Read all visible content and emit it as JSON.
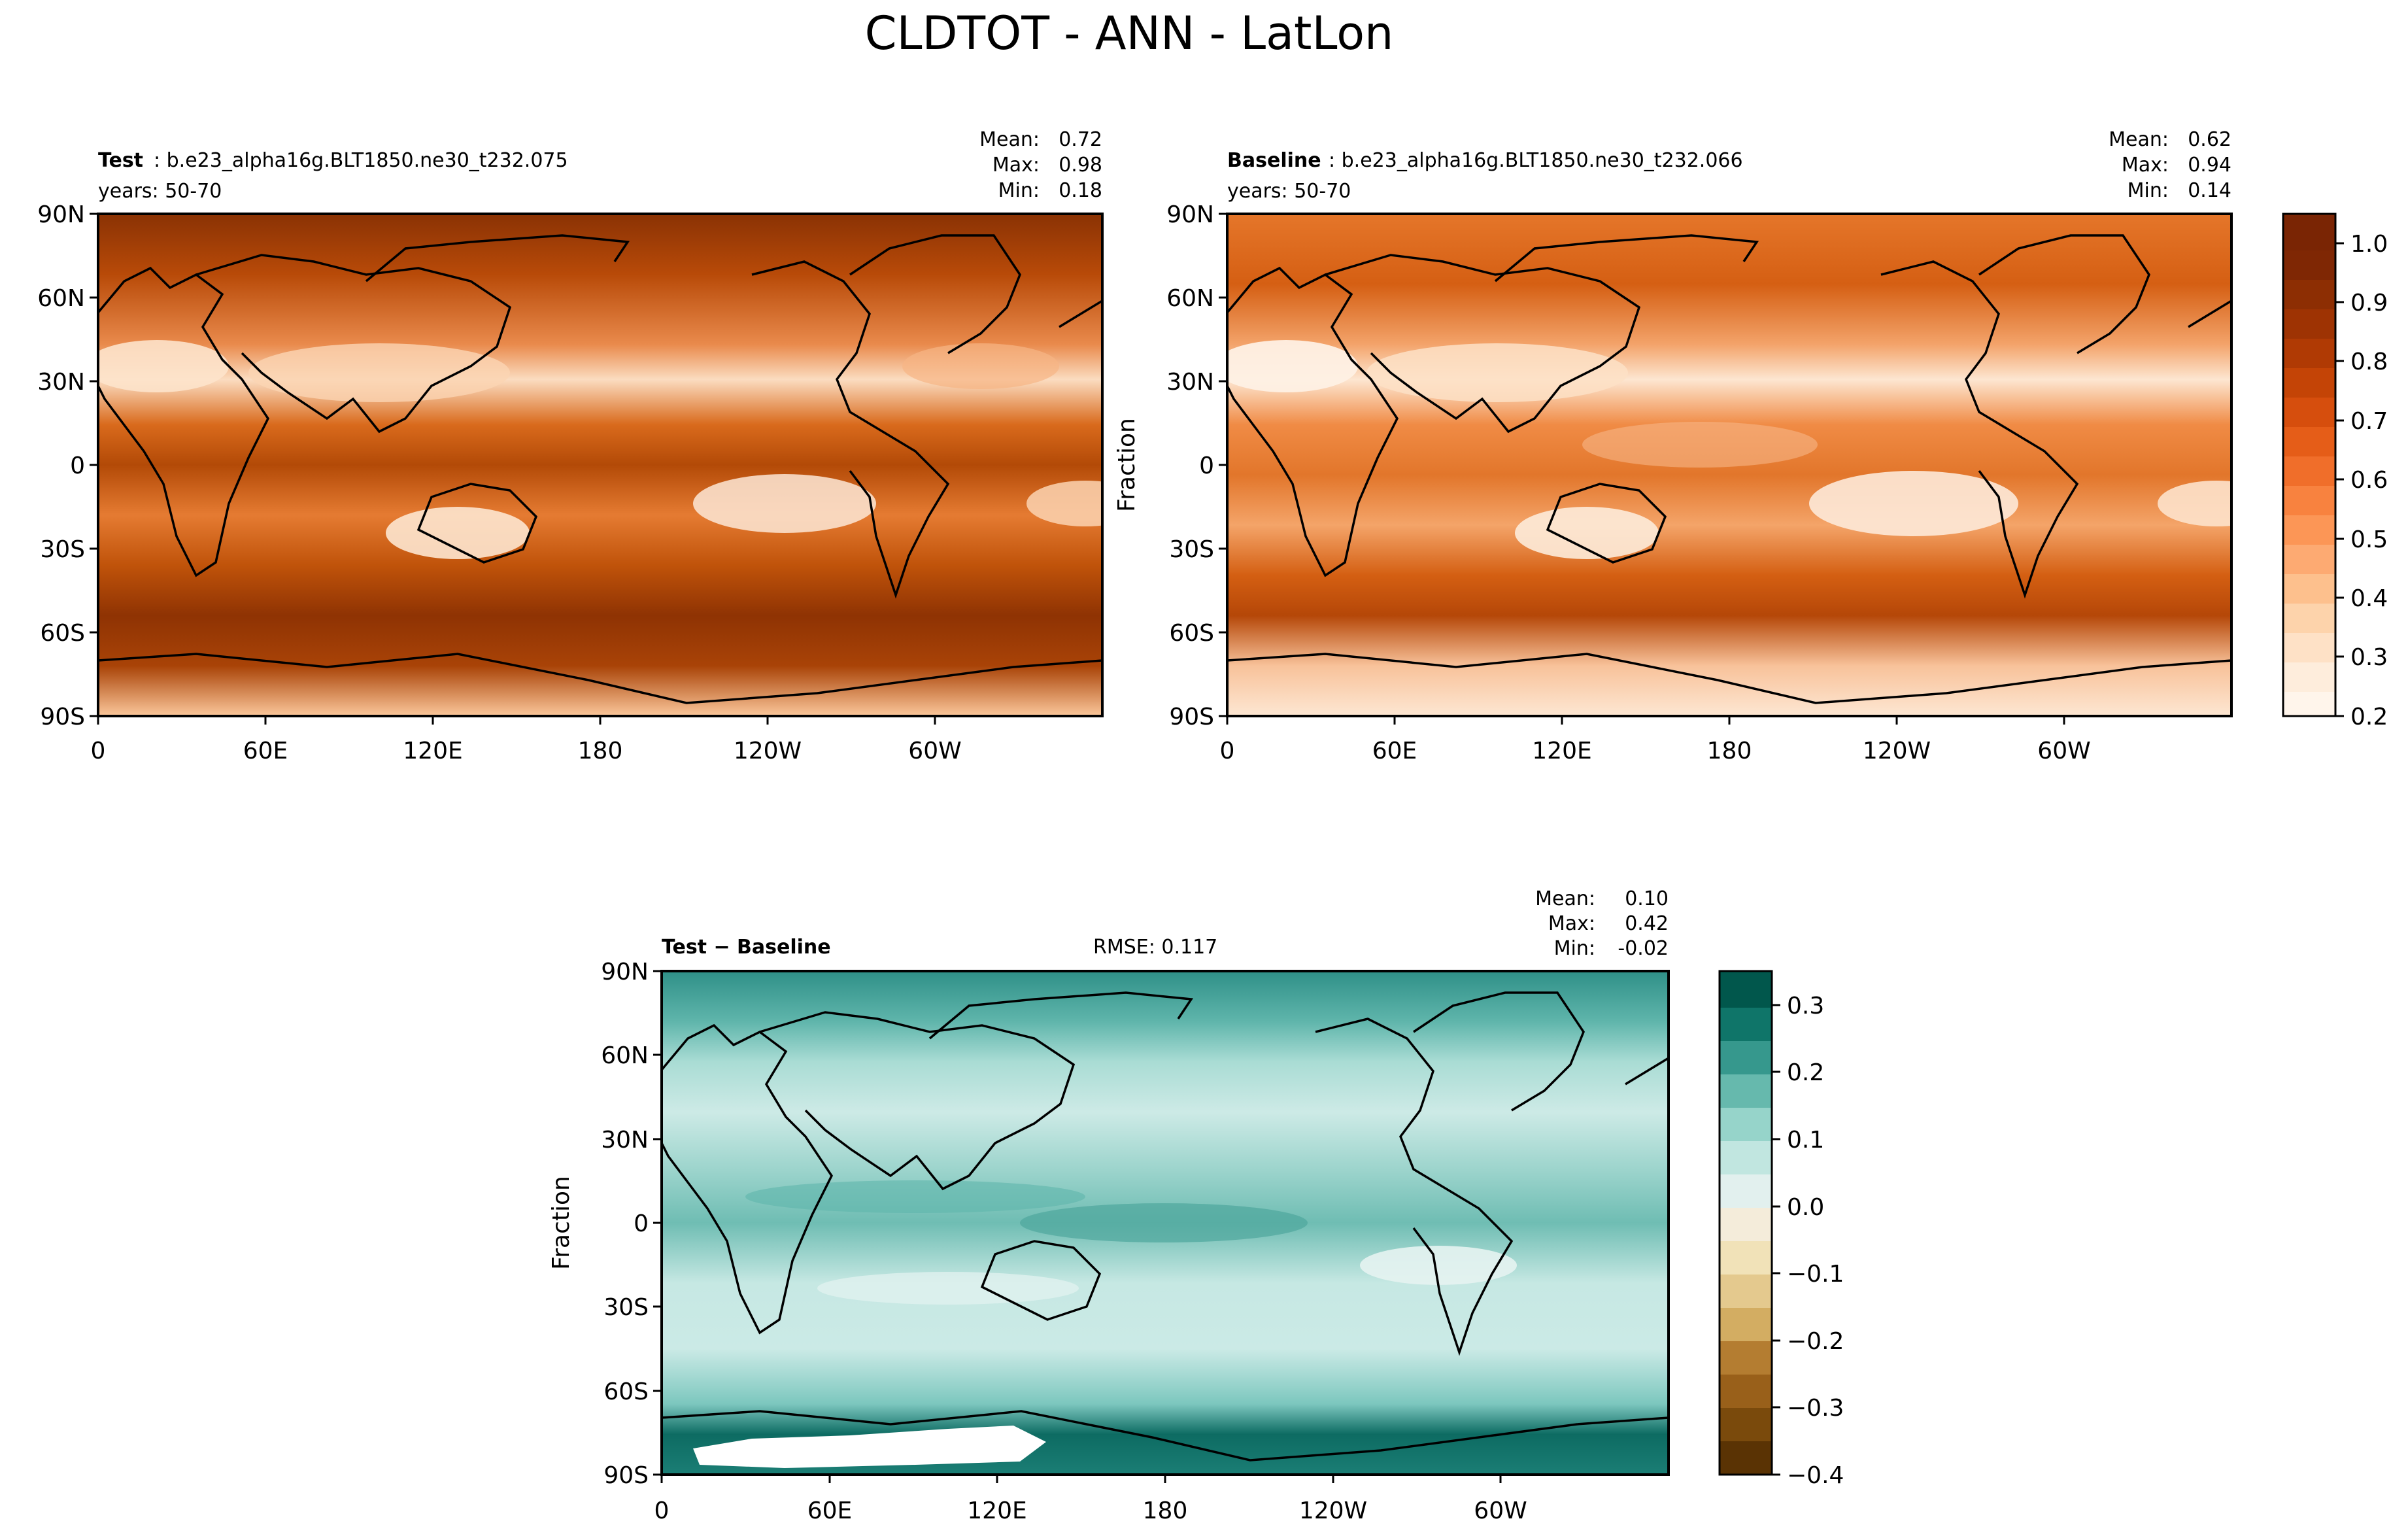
{
  "figure": {
    "suptitle": "CLDTOT - ANN - LatLon"
  },
  "chart_data": [
    {
      "type": "heatmap",
      "panel": "test",
      "title_bold": "Test",
      "title_text": ": b.e23_alpha16g.BLT1850.ne30_t232.075",
      "years": "years: 50-70",
      "stats": {
        "mean_label": "Mean:",
        "mean": "0.72",
        "max_label": "Max:",
        "max": "0.98",
        "min_label": "Min:",
        "min": "0.18"
      },
      "xticks": [
        "0",
        "60E",
        "120E",
        "180",
        "120W",
        "60W"
      ],
      "yticks": [
        "90N",
        "60N",
        "30N",
        "0",
        "30S",
        "60S",
        "90S"
      ],
      "xlim": [
        0,
        360
      ],
      "ylim": [
        -90,
        90
      ],
      "ylabel": ""
    },
    {
      "type": "heatmap",
      "panel": "baseline",
      "title_bold": "Baseline",
      "title_text": ": b.e23_alpha16g.BLT1850.ne30_t232.066",
      "years": "years: 50-70",
      "stats": {
        "mean_label": "Mean:",
        "mean": "0.62",
        "max_label": "Max:",
        "max": "0.94",
        "min_label": "Min:",
        "min": "0.14"
      },
      "xticks": [
        "0",
        "60E",
        "120E",
        "180",
        "120W",
        "60W"
      ],
      "yticks": [
        "90N",
        "60N",
        "30N",
        "0",
        "30S",
        "60S",
        "90S"
      ],
      "xlim": [
        0,
        360
      ],
      "ylim": [
        -90,
        90
      ],
      "ylabel": "Fraction",
      "colorbar": {
        "ticks": [
          "1.0",
          "0.9",
          "0.8",
          "0.7",
          "0.6",
          "0.5",
          "0.4",
          "0.3",
          "0.2"
        ],
        "range": [
          0.2,
          1.05
        ],
        "colormap": "Oranges"
      }
    },
    {
      "type": "heatmap",
      "panel": "difference",
      "title_bold": "Test − Baseline",
      "rmse": "RMSE: 0.117",
      "stats": {
        "mean_label": "Mean:",
        "mean": "0.10",
        "max_label": "Max:",
        "max": "0.42",
        "min_label": "Min:",
        "min": "-0.02"
      },
      "xticks": [
        "0",
        "60E",
        "120E",
        "180",
        "120W",
        "60W"
      ],
      "yticks": [
        "90N",
        "60N",
        "30N",
        "0",
        "30S",
        "60S",
        "90S"
      ],
      "xlim": [
        0,
        360
      ],
      "ylim": [
        -90,
        90
      ],
      "ylabel": "Fraction",
      "colorbar": {
        "ticks": [
          "0.3",
          "0.2",
          "0.1",
          "0.0",
          "−0.1",
          "−0.2",
          "−0.3",
          "−0.4"
        ],
        "range": [
          -0.4,
          0.35
        ],
        "colormap": "BrBG"
      }
    }
  ]
}
